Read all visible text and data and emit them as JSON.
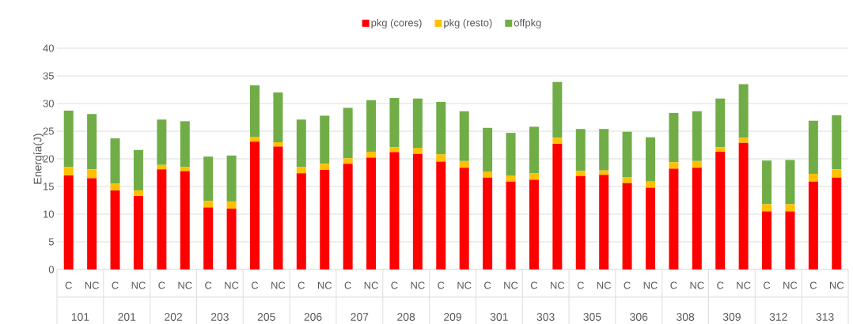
{
  "chart_data": {
    "type": "bar",
    "stacked": true,
    "ylabel": "Energía(J)",
    "categories": [
      "C",
      "NC",
      "C",
      "NC",
      "C",
      "NC",
      "C",
      "NC",
      "C",
      "NC",
      "C",
      "NC",
      "C",
      "NC",
      "C",
      "NC",
      "C",
      "NC",
      "C",
      "NC",
      "C",
      "NC",
      "C",
      "NC",
      "C",
      "NC",
      "C",
      "NC",
      "C",
      "NC",
      "C",
      "NC",
      "C",
      "NC"
    ],
    "annotations": [
      "101",
      "201",
      "202",
      "203",
      "205",
      "206",
      "207",
      "208",
      "209",
      "301",
      "303",
      "305",
      "306",
      "308",
      "309",
      "312",
      "313"
    ],
    "series": [
      {
        "name": "pkg (cores)",
        "color": "#ff0000",
        "values": [
          17.0,
          16.5,
          14.3,
          13.3,
          18.1,
          17.8,
          11.2,
          11.0,
          23.1,
          22.2,
          17.4,
          18.0,
          19.1,
          20.2,
          21.2,
          20.9,
          19.5,
          18.4,
          16.6,
          15.9,
          16.2,
          22.7,
          16.9,
          17.1,
          15.6,
          14.8,
          18.2,
          18.4,
          21.3,
          22.9,
          10.5,
          10.5,
          15.9,
          16.6
        ]
      },
      {
        "name": "pkg (resto)",
        "color": "#ffc000",
        "values": [
          1.5,
          1.6,
          1.2,
          1.0,
          0.8,
          0.7,
          1.2,
          1.3,
          0.9,
          0.8,
          1.1,
          1.1,
          1.0,
          1.1,
          0.9,
          1.1,
          1.3,
          1.2,
          1.1,
          1.1,
          1.2,
          1.1,
          0.9,
          0.8,
          1.1,
          1.1,
          1.2,
          1.2,
          0.8,
          0.9,
          1.3,
          1.3,
          1.4,
          1.5
        ]
      },
      {
        "name": "offpkg",
        "color": "#70ad47",
        "values": [
          10.2,
          10.0,
          8.2,
          7.3,
          8.2,
          8.3,
          8.0,
          8.3,
          9.3,
          9.0,
          8.6,
          8.7,
          9.1,
          9.3,
          8.9,
          8.9,
          9.5,
          9.0,
          7.9,
          7.7,
          8.4,
          10.1,
          7.6,
          7.5,
          8.2,
          8.0,
          8.9,
          9.0,
          8.8,
          9.7,
          7.9,
          8.0,
          9.6,
          9.8
        ]
      }
    ],
    "ylim": [
      0,
      40
    ],
    "yticks": [
      0,
      5,
      10,
      15,
      20,
      25,
      30,
      35,
      40
    ],
    "grid": "y",
    "legend": "top"
  }
}
